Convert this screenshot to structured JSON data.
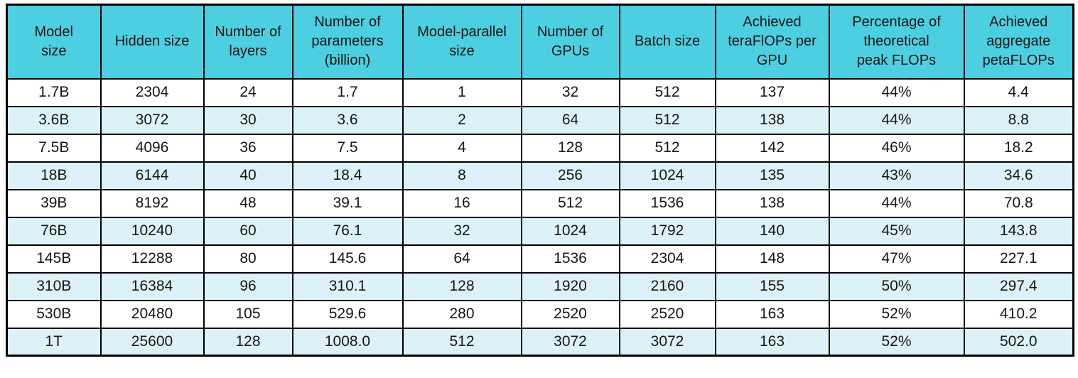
{
  "colors": {
    "header_bg": "#4ccfe0",
    "row_bg": "#ffffff",
    "alt_row_bg": "#ddf2f8",
    "border": "#000000",
    "text": "#161616"
  },
  "chart_data": {
    "type": "table",
    "columns": [
      "Model\nsize",
      "Hidden size",
      "Number of\nlayers",
      "Number of\nparameters\n(billion)",
      "Model-parallel\nsize",
      "Number of\nGPUs",
      "Batch size",
      "Achieved\nteraFlOPs per\nGPU",
      "Percentage of\ntheoretical\npeak FLOPs",
      "Achieved\naggregate\npetaFLOPs"
    ],
    "rows": [
      [
        "1.7B",
        "2304",
        "24",
        "1.7",
        "1",
        "32",
        "512",
        "137",
        "44%",
        "4.4"
      ],
      [
        "3.6B",
        "3072",
        "30",
        "3.6",
        "2",
        "64",
        "512",
        "138",
        "44%",
        "8.8"
      ],
      [
        "7.5B",
        "4096",
        "36",
        "7.5",
        "4",
        "128",
        "512",
        "142",
        "46%",
        "18.2"
      ],
      [
        "18B",
        "6144",
        "40",
        "18.4",
        "8",
        "256",
        "1024",
        "135",
        "43%",
        "34.6"
      ],
      [
        "39B",
        "8192",
        "48",
        "39.1",
        "16",
        "512",
        "1536",
        "138",
        "44%",
        "70.8"
      ],
      [
        "76B",
        "10240",
        "60",
        "76.1",
        "32",
        "1024",
        "1792",
        "140",
        "45%",
        "143.8"
      ],
      [
        "145B",
        "12288",
        "80",
        "145.6",
        "64",
        "1536",
        "2304",
        "148",
        "47%",
        "227.1"
      ],
      [
        "310B",
        "16384",
        "96",
        "310.1",
        "128",
        "1920",
        "2160",
        "155",
        "50%",
        "297.4"
      ],
      [
        "530B",
        "20480",
        "105",
        "529.6",
        "280",
        "2520",
        "2520",
        "163",
        "52%",
        "410.2"
      ],
      [
        "1T",
        "25600",
        "128",
        "1008.0",
        "512",
        "3072",
        "3072",
        "163",
        "52%",
        "502.0"
      ]
    ]
  }
}
